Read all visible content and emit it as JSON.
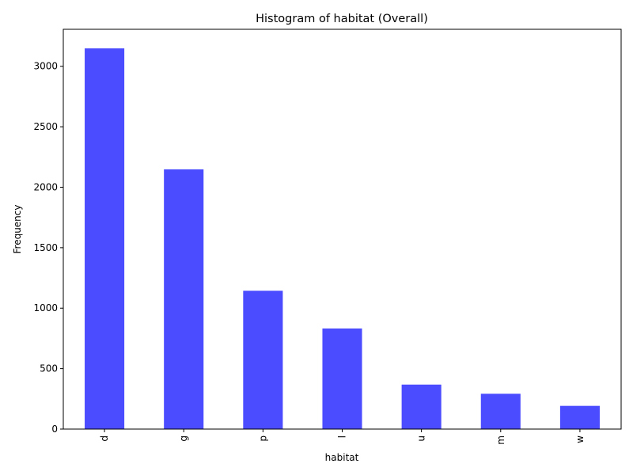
{
  "chart_data": {
    "type": "bar",
    "title": "Histogram of habitat (Overall)",
    "xlabel": "habitat",
    "ylabel": "Frequency",
    "categories": [
      "d",
      "g",
      "p",
      "l",
      "u",
      "m",
      "w"
    ],
    "values": [
      3148,
      2148,
      1144,
      832,
      368,
      292,
      192
    ],
    "ylim": [
      0,
      3306
    ],
    "yticks": [
      0,
      500,
      1000,
      1500,
      2000,
      2500,
      3000
    ],
    "bar_color": "#4b4bff",
    "grid": false,
    "legend": "none"
  }
}
